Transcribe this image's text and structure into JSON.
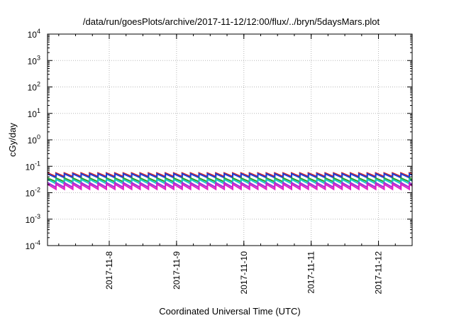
{
  "chart_data": {
    "type": "line",
    "title": "/data/run/goesPlots/archive/2017-11-12/12:00/flux/../bryn/5daysMars.plot",
    "xlabel": "Coordinated Universal Time (UTC)",
    "ylabel": "cGy/day",
    "x_type": "time",
    "x_range": [
      "2017-11-07T02:00",
      "2017-11-12T12:00"
    ],
    "x_ticks": [
      "2017-11-8",
      "2017-11-9",
      "2017-11-10",
      "2017-11-11",
      "2017-11-12"
    ],
    "y_scale": "log",
    "ylim": [
      0.0001,
      10000
    ],
    "y_ticks": [
      {
        "base": "10",
        "exp": "-4"
      },
      {
        "base": "10",
        "exp": "-3"
      },
      {
        "base": "10",
        "exp": "-2"
      },
      {
        "base": "10",
        "exp": "-1"
      },
      {
        "base": "10",
        "exp": "0"
      },
      {
        "base": "10",
        "exp": "1"
      },
      {
        "base": "10",
        "exp": "2"
      },
      {
        "base": "10",
        "exp": "3"
      },
      {
        "base": "10",
        "exp": "4"
      }
    ],
    "grid": true,
    "pattern": "sawtooth",
    "sawtooth_period_hours": 3,
    "series": [
      {
        "color": "#d62728",
        "peak": 0.056,
        "trough": 0.041
      },
      {
        "color": "#1f3fd6",
        "peak": 0.052,
        "trough": 0.037
      },
      {
        "color": "#2ca02c",
        "peak": 0.036,
        "trough": 0.026
      },
      {
        "color": "#17c8c8",
        "peak": 0.032,
        "trough": 0.022
      },
      {
        "color": "#9b30d6",
        "peak": 0.024,
        "trough": 0.016
      },
      {
        "color": "#e020c8",
        "peak": 0.021,
        "trough": 0.0135
      }
    ]
  }
}
